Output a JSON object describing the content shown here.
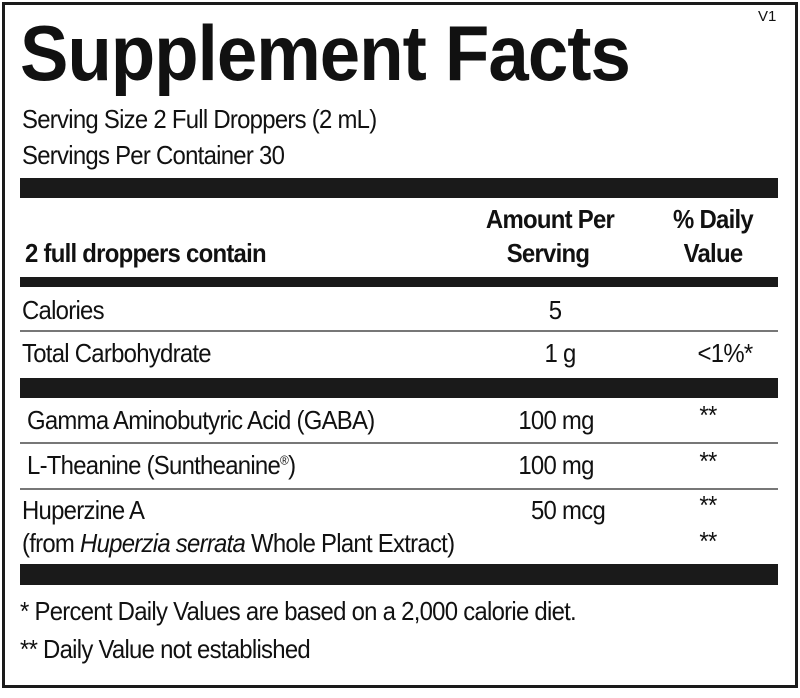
{
  "title": "Supplement Facts",
  "version": "V1",
  "serving_size": "Serving Size 2 Full Droppers (2 mL)",
  "servings_per_container": "Servings Per Container 30",
  "header": {
    "contain": "2 full droppers contain",
    "amount_line1": "Amount Per",
    "amount_line2": "Serving",
    "dv_line1": "% Daily",
    "dv_line2": "Value"
  },
  "rows": [
    {
      "name": "Calories",
      "amount": "5",
      "dv": ""
    },
    {
      "name": "Total Carbohydrate",
      "amount": "1 g",
      "dv": "<1%*"
    },
    {
      "name": "Gamma Aminobutyric Acid  (GABA)",
      "amount": "100 mg",
      "dv": "**"
    },
    {
      "name": "L-Theanine (Suntheanine",
      "name_mark": "®",
      "name_end": ")",
      "amount": "100 mg",
      "dv": "**"
    },
    {
      "name": "Huperzine A",
      "amount": "50 mcg",
      "dv": "**",
      "sub_prefix": "(from ",
      "sub_italic": "Huperzia serrata",
      "sub_suffix": " Whole Plant Extract)",
      "sub_dv": "**"
    }
  ],
  "footnotes": [
    "* Percent Daily Values are based on a 2,000 calorie diet.",
    "** Daily Value not established"
  ]
}
